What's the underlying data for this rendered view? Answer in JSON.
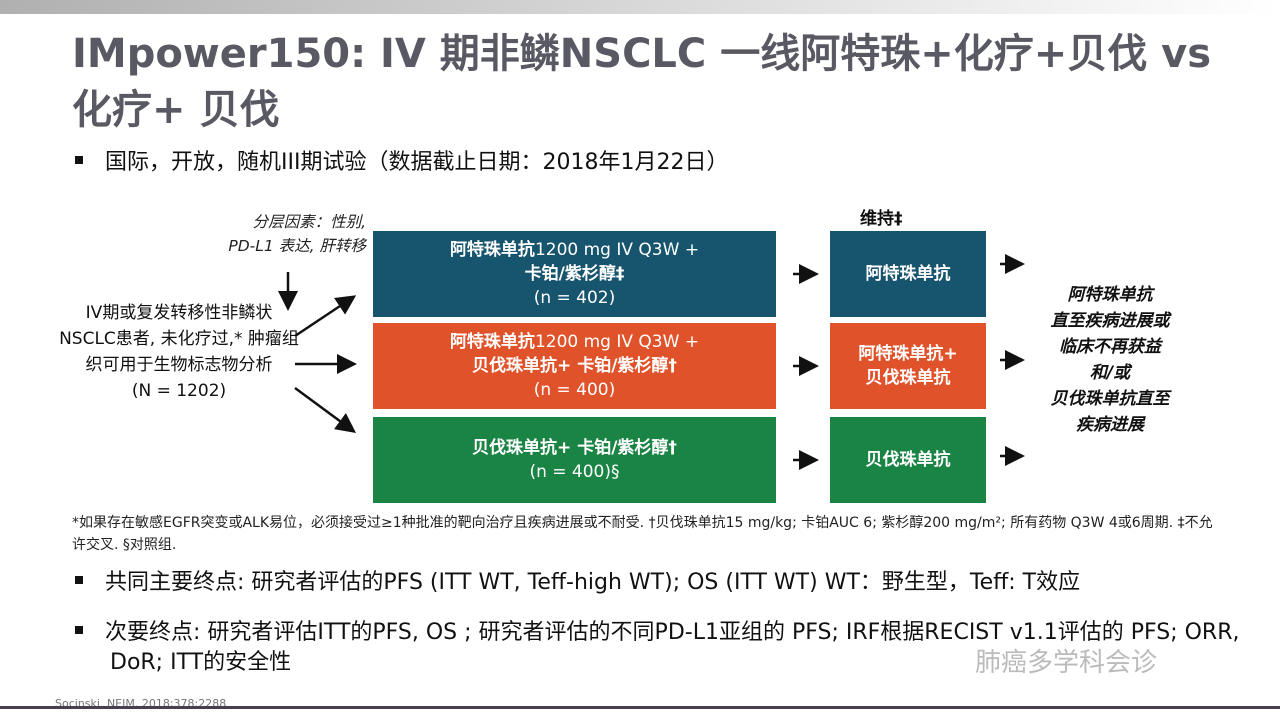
{
  "title": "IMpower150: IV 期非鳞NSCLC 一线阿特珠+化疗+贝伐 vs 化疗+ 贝伐",
  "bullets": {
    "design": "国际，开放，随机III期试验（数据截止日期：2018年1月22日）",
    "primary": "共同主要终点: 研究者评估的PFS (ITT WT, Teff-high WT); OS  (ITT WT) WT：野生型，Teff: T效应",
    "secondary": "次要终点: 研究者评估ITT的PFS, OS ; 研究者评估的不同PD-L1亚组的 PFS; IRF根据RECIST v1.1评估的 PFS; ORR, DoR; ITT的安全性"
  },
  "stratification": [
    "分层因素：性别,",
    "PD-L1 表达, 肝转移"
  ],
  "patients": [
    "IV期或复发转移性非鳞状NSCLC患者, 未化疗过,* 肿瘤组织可用于生物标志物分析",
    "(N = 1202)"
  ],
  "arms": [
    {
      "l1a": "阿特珠单抗",
      "l1b": "1200 mg IV Q3W +",
      "l2": "卡铂/紫杉醇‡",
      "n": "(n = 402)",
      "color": "#17546e",
      "maint": [
        "阿特珠单抗"
      ]
    },
    {
      "l1a": "阿特珠单抗",
      "l1b": "1200 mg IV Q3W +",
      "l2": "贝伐珠单抗+ 卡铂/紫杉醇†",
      "n": "(n = 400)",
      "color": "#e0522a",
      "maint": [
        "阿特珠单抗+",
        "贝伐珠单抗"
      ]
    },
    {
      "l1a": "",
      "l1b": "",
      "l2": "贝伐珠单抗+ 卡铂/紫杉醇†",
      "n": "(n = 400)§",
      "color": "#1a8445",
      "maint": [
        "贝伐珠单抗"
      ]
    }
  ],
  "maintenance_label": "维持‡",
  "outcome": [
    "阿特珠单抗",
    "直至疾病进展或",
    "临床不再获益",
    "和/或",
    "贝伐珠单抗直至",
    "疾病进展"
  ],
  "footnote": "*如果存在敏感EGFR突变或ALK易位，必须接受过≥1种批准的靶向治疗且疾病进展或不耐受. †贝伐珠单抗15 mg/kg; 卡铂AUC 6; 紫杉醇200 mg/m²; 所有药物 Q3W 4或6周期. ‡不允许交叉. §对照组.",
  "citation": "Socinski. NEJM. 2018;378:2288",
  "watermark": "肺癌多学科会诊"
}
